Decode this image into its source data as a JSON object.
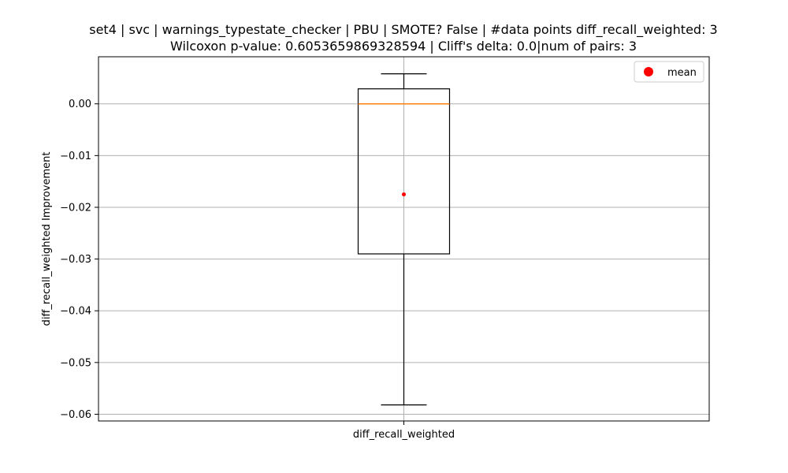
{
  "chart_data": {
    "type": "box",
    "title": [
      "set4 | svc | warnings_typestate_checker | PBU | SMOTE? False | #data points diff_recall_weighted: 3",
      "Wilcoxon p-value: 0.6053659869328594 | Cliff's delta: 0.0|num of pairs: 3"
    ],
    "xlabel": "",
    "ylabel": "diff_recall_weighted Improvement",
    "categories": [
      "diff_recall_weighted"
    ],
    "ylim": [
      -0.0613,
      0.0091
    ],
    "yticks": [
      0.0,
      -0.01,
      -0.02,
      -0.03,
      -0.04,
      -0.05,
      -0.06
    ],
    "ytick_labels": [
      "0.00",
      "−0.01",
      "−0.02",
      "−0.03",
      "−0.04",
      "−0.05",
      "−0.06"
    ],
    "grid": true,
    "legend": {
      "location": "top-right",
      "entries": [
        "mean"
      ]
    },
    "boxes": [
      {
        "category": "diff_recall_weighted",
        "whisker_low": -0.0582,
        "q1": -0.029,
        "median": 0.0,
        "q3": 0.0029,
        "whisker_high": 0.0058,
        "mean": -0.0175
      }
    ],
    "colors": {
      "box": "#000000",
      "median": "#ff7f0e",
      "mean": "#ff0000",
      "grid": "#b0b0b0"
    }
  }
}
